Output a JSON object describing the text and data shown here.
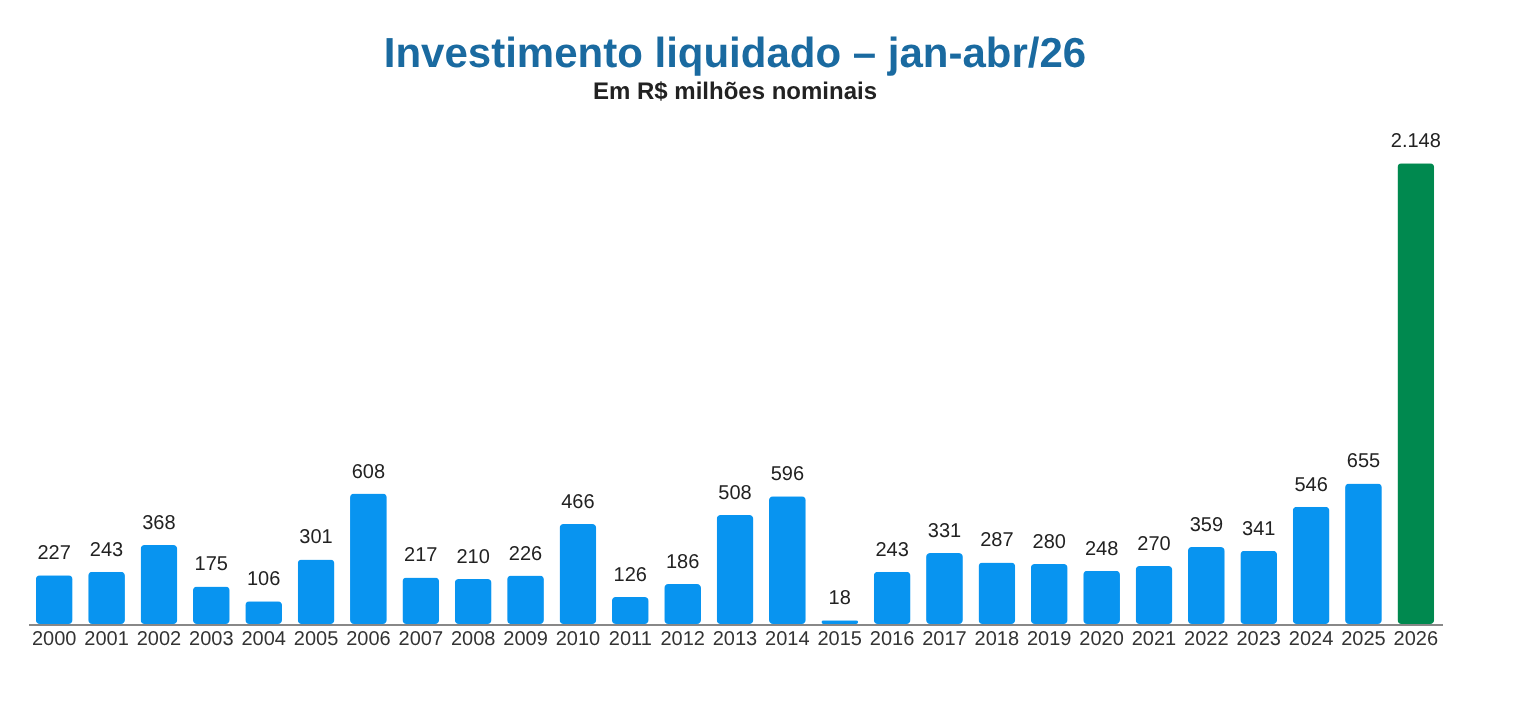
{
  "chart_data": {
    "type": "bar",
    "title": "Investimento liquidado – jan-abr/26",
    "subtitle": "Em R$ milhões nominais",
    "categories": [
      "2000",
      "2001",
      "2002",
      "2003",
      "2004",
      "2005",
      "2006",
      "2007",
      "2008",
      "2009",
      "2010",
      "2011",
      "2012",
      "2013",
      "2014",
      "2015",
      "2016",
      "2017",
      "2018",
      "2019",
      "2020",
      "2021",
      "2022",
      "2023",
      "2024",
      "2025",
      "2026"
    ],
    "values": [
      227,
      243,
      368,
      175,
      106,
      301,
      608,
      217,
      210,
      226,
      466,
      126,
      186,
      508,
      596,
      18,
      243,
      331,
      287,
      280,
      248,
      270,
      359,
      341,
      546,
      655,
      2148
    ],
    "value_labels": [
      "227",
      "243",
      "368",
      "175",
      "106",
      "301",
      "608",
      "217",
      "210",
      "226",
      "466",
      "126",
      "186",
      "508",
      "596",
      "18",
      "243",
      "331",
      "287",
      "280",
      "248",
      "270",
      "359",
      "341",
      "546",
      "655",
      "2.148"
    ],
    "colors": [
      "#0894f0",
      "#0894f0",
      "#0894f0",
      "#0894f0",
      "#0894f0",
      "#0894f0",
      "#0894f0",
      "#0894f0",
      "#0894f0",
      "#0894f0",
      "#0894f0",
      "#0894f0",
      "#0894f0",
      "#0894f0",
      "#0894f0",
      "#0894f0",
      "#0894f0",
      "#0894f0",
      "#0894f0",
      "#0894f0",
      "#0894f0",
      "#0894f0",
      "#0894f0",
      "#0894f0",
      "#0894f0",
      "#0894f0",
      "#00894f"
    ],
    "grid": false
  }
}
